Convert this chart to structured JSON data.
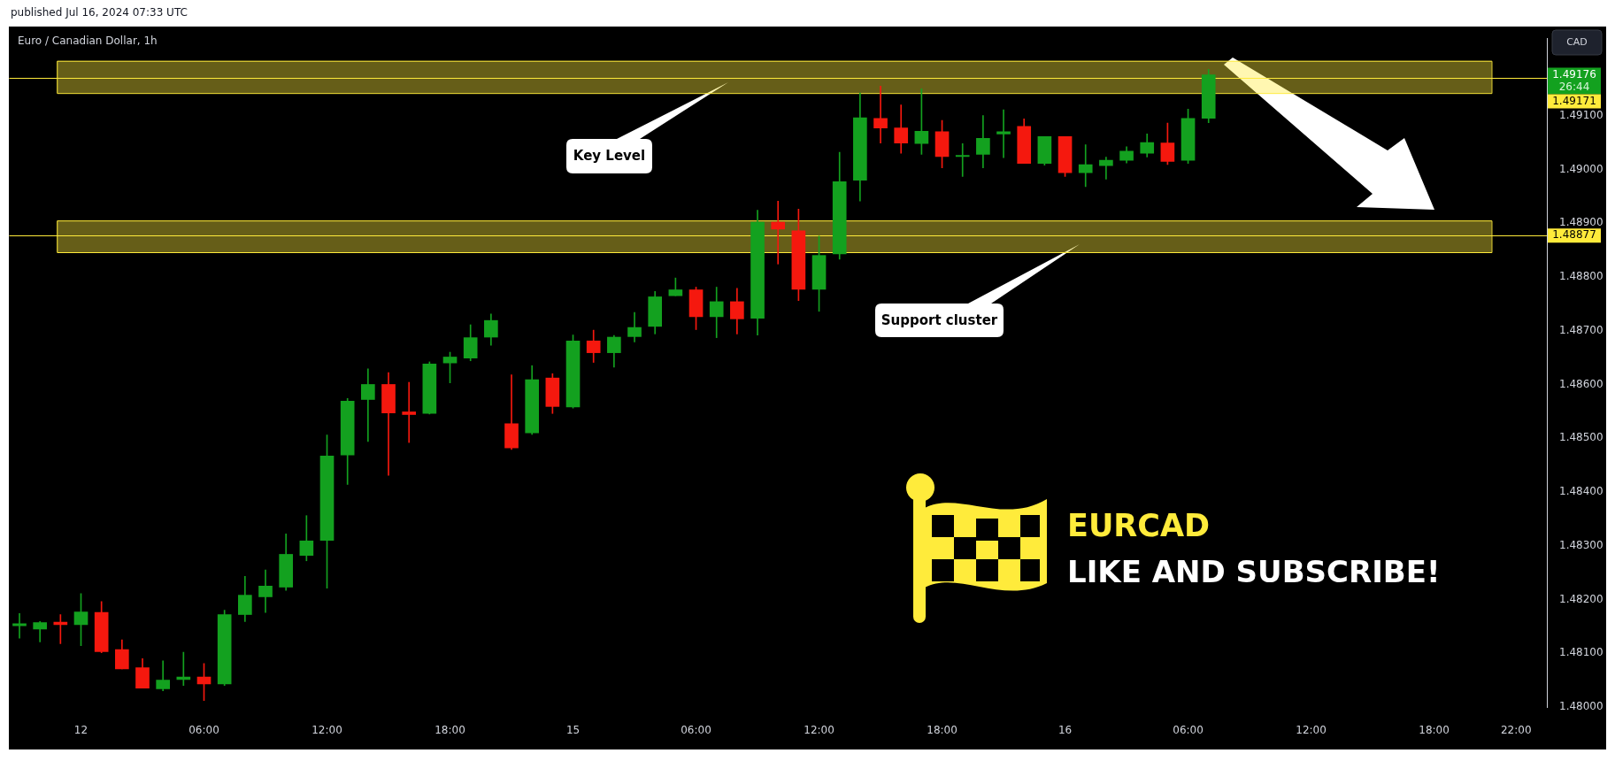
{
  "chart_data": {
    "type": "candlestick",
    "title": "Euro / Canadian Dollar, 1h",
    "ylabel": "CAD",
    "categories": [
      null,
      null,
      null,
      "12",
      null,
      null,
      null,
      null,
      null,
      "06:00",
      null,
      null,
      null,
      null,
      null,
      "12:00",
      null,
      null,
      null,
      null,
      null,
      "18:00",
      null,
      null,
      null,
      null,
      null,
      "15",
      null,
      null,
      null,
      null,
      null,
      "06:00",
      null,
      null,
      null,
      null,
      null,
      "12:00",
      null,
      null,
      null,
      null,
      null,
      "18:00",
      null,
      null,
      null,
      null,
      null,
      "16",
      null,
      null,
      null,
      null,
      null,
      "06:00",
      null,
      null,
      null,
      null,
      null,
      "12:00",
      null,
      null,
      null,
      null,
      null,
      "18:00",
      null,
      null,
      null,
      "22:00",
      null
    ],
    "ohlc": [
      [
        1.48151,
        1.48174,
        1.48128,
        1.48155
      ],
      [
        1.48145,
        1.48159,
        1.48121,
        1.48157
      ],
      [
        1.48158,
        1.48172,
        1.48118,
        1.48153
      ],
      [
        1.48153,
        1.48211,
        1.48114,
        1.48177
      ],
      [
        1.48176,
        1.48196,
        1.48101,
        1.48103
      ],
      [
        1.48107,
        1.48125,
        1.48071,
        1.48071
      ],
      [
        1.48073,
        1.4809,
        1.48035,
        1.48035
      ],
      [
        1.48034,
        1.48086,
        1.4803,
        1.4805
      ],
      [
        1.48051,
        1.48102,
        1.4804,
        1.48056
      ],
      [
        1.48056,
        1.48081,
        1.48012,
        1.48043
      ],
      [
        1.48043,
        1.4818,
        1.4804,
        1.48172
      ],
      [
        1.48172,
        1.48243,
        1.48159,
        1.48208
      ],
      [
        1.48205,
        1.48255,
        1.48176,
        1.48225
      ],
      [
        1.48223,
        1.48322,
        1.48217,
        1.48284
      ],
      [
        1.48282,
        1.48356,
        1.48272,
        1.48309
      ],
      [
        1.4831,
        1.48506,
        1.48221,
        1.48467
      ],
      [
        1.48469,
        1.48574,
        1.48414,
        1.48569
      ],
      [
        1.48572,
        1.48629,
        1.48494,
        1.486
      ],
      [
        1.486,
        1.48622,
        1.48431,
        1.48547
      ],
      [
        1.48549,
        1.48604,
        1.48492,
        1.48544
      ],
      [
        1.48546,
        1.48642,
        1.48545,
        1.48638
      ],
      [
        1.4864,
        1.4866,
        1.48603,
        1.48651
      ],
      [
        1.48649,
        1.48711,
        1.48644,
        1.48687
      ],
      [
        1.48688,
        1.48731,
        1.48673,
        1.48719
      ],
      [
        1.48527,
        1.48618,
        1.48479,
        1.48482
      ],
      [
        1.4851,
        1.48635,
        1.48507,
        1.48609
      ],
      [
        1.48612,
        1.4862,
        1.48546,
        1.48559
      ],
      [
        1.48558,
        1.48692,
        1.48556,
        1.48681
      ],
      [
        1.48681,
        1.48701,
        1.48641,
        1.48659
      ],
      [
        1.48659,
        1.48691,
        1.48632,
        1.48688
      ],
      [
        1.48689,
        1.48734,
        1.48679,
        1.48706
      ],
      [
        1.48708,
        1.48773,
        1.48694,
        1.48763
      ],
      [
        1.48765,
        1.48798,
        1.48765,
        1.48776
      ],
      [
        1.48776,
        1.48781,
        1.48702,
        1.48726
      ],
      [
        1.48726,
        1.48781,
        1.48687,
        1.48754
      ],
      [
        1.48754,
        1.48779,
        1.48694,
        1.48722
      ],
      [
        1.48723,
        1.48924,
        1.48692,
        1.48902
      ],
      [
        1.48902,
        1.48941,
        1.48824,
        1.48889
      ],
      [
        1.48886,
        1.48926,
        1.48756,
        1.48777
      ],
      [
        1.48777,
        1.48876,
        1.48736,
        1.4884
      ],
      [
        1.48843,
        1.49032,
        1.48833,
        1.48977
      ],
      [
        1.4898,
        1.49142,
        1.48941,
        1.49096
      ],
      [
        1.49095,
        1.49155,
        1.49049,
        1.49077
      ],
      [
        1.49077,
        1.4912,
        1.4903,
        1.49049
      ],
      [
        1.49048,
        1.4915,
        1.49028,
        1.49071
      ],
      [
        1.4907,
        1.49091,
        1.49003,
        1.49024
      ],
      [
        1.49024,
        1.49048,
        1.48987,
        1.49026
      ],
      [
        1.49028,
        1.491,
        1.49003,
        1.49058
      ],
      [
        1.49066,
        1.49111,
        1.49022,
        1.4907
      ],
      [
        1.4908,
        1.49094,
        1.49011,
        1.49011
      ],
      [
        1.49011,
        1.49061,
        1.49008,
        1.49061
      ],
      [
        1.49061,
        1.49061,
        1.48987,
        1.48994
      ],
      [
        1.48994,
        1.49046,
        1.48968,
        1.49009
      ],
      [
        1.49007,
        1.49023,
        1.48982,
        1.49017
      ],
      [
        1.49017,
        1.49042,
        1.49012,
        1.49034
      ],
      [
        1.4903,
        1.49066,
        1.49023,
        1.4905
      ],
      [
        1.49049,
        1.49086,
        1.49009,
        1.49015
      ],
      [
        1.49017,
        1.49112,
        1.49011,
        1.49095
      ],
      [
        1.49095,
        1.49186,
        1.49087,
        1.49176
      ],
      null,
      null,
      null,
      null,
      null,
      null,
      null,
      null,
      null,
      null,
      null,
      null,
      null,
      null,
      null,
      null
    ],
    "colors": [
      "#13a11f",
      "#13a11f",
      "#f5180e",
      "#13a11f",
      "#f5180e",
      "#f5180e",
      "#f5180e",
      "#13a11f",
      "#13a11f",
      "#f5180e",
      "#13a11f",
      "#13a11f",
      "#13a11f",
      "#13a11f",
      "#13a11f",
      "#13a11f",
      "#13a11f",
      "#13a11f",
      "#f5180e",
      "#f5180e",
      "#13a11f",
      "#13a11f",
      "#13a11f",
      "#13a11f",
      "#f5180e",
      "#13a11f",
      "#f5180e",
      "#13a11f",
      "#f5180e",
      "#13a11f",
      "#13a11f",
      "#13a11f",
      "#13a11f",
      "#f5180e",
      "#13a11f",
      "#f5180e",
      "#13a11f",
      "#f5180e",
      "#f5180e",
      "#13a11f",
      "#13a11f",
      "#13a11f",
      "#f5180e",
      "#f5180e",
      "#13a11f",
      "#f5180e",
      "#13a11f",
      "#13a11f",
      "#13a11f",
      "#f5180e",
      "#13a11f",
      "#f5180e",
      "#13a11f",
      "#13a11f",
      "#13a11f",
      "#13a11f",
      "#f5180e",
      "#13a11f",
      "#13a11f",
      null,
      null,
      null,
      null,
      null,
      null,
      null,
      null,
      null,
      null,
      null,
      null,
      null,
      null,
      null,
      null
    ],
    "ylim": [
      1.48,
      1.49244
    ],
    "yticks": [
      {
        "value": 1.48,
        "label": "1.48000"
      },
      {
        "value": 1.481,
        "label": "1.48100"
      },
      {
        "value": 1.482,
        "label": "1.48200"
      },
      {
        "value": 1.483,
        "label": "1.48300"
      },
      {
        "value": 1.484,
        "label": "1.48400"
      },
      {
        "value": 1.485,
        "label": "1.48500"
      },
      {
        "value": 1.486,
        "label": "1.48600"
      },
      {
        "value": 1.487,
        "label": "1.48700"
      },
      {
        "value": 1.488,
        "label": "1.48800"
      },
      {
        "value": 1.489,
        "label": "1.48900"
      },
      {
        "value": 1.49,
        "label": "1.49000"
      },
      {
        "value": 1.491,
        "label": "1.49100"
      }
    ],
    "ref_lines": [
      {
        "axis": "y",
        "value": 1.49171,
        "label": "1.49171",
        "color": "#ffeb3b"
      },
      {
        "axis": "y",
        "value": 1.48877,
        "label": "1.48877",
        "color": "#ffeb3b"
      }
    ],
    "bands": [
      {
        "axis": "y",
        "from": 1.49142,
        "to": 1.49202,
        "color": "#ffeb3b"
      },
      {
        "axis": "y",
        "from": 1.48846,
        "to": 1.48905,
        "color": "#ffeb3b"
      }
    ],
    "annotations": [
      "published Jul 16, 2024 07:33 UTC",
      "Key Level",
      "Support cluster",
      "EURCAD",
      "LIKE AND SUBSCRIBE!",
      "1.49176",
      "26:44"
    ],
    "legend": false,
    "grid": false
  }
}
